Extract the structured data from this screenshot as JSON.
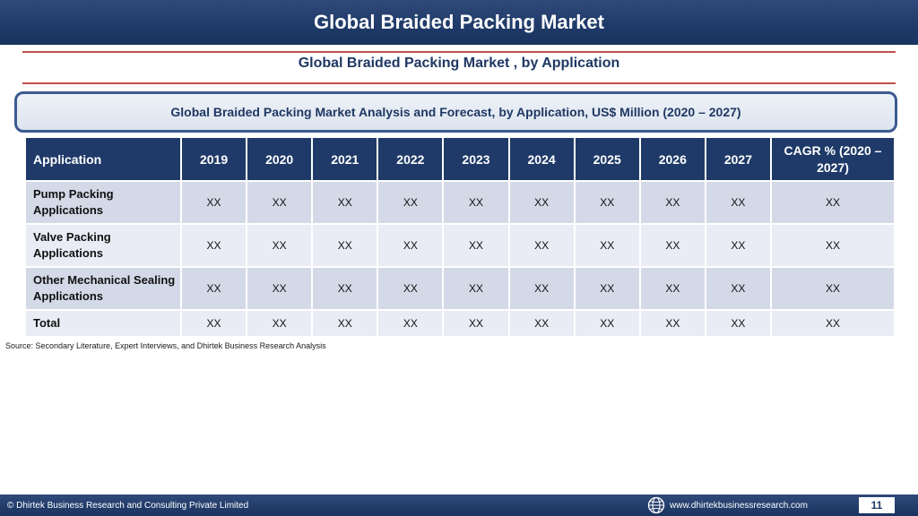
{
  "header": {
    "title": "Global Braided Packing Market"
  },
  "subtitle": "Global Braided Packing Market , by Application",
  "caption": "Global Braided Packing Market  Analysis and Forecast, by Application, US$ Million (2020 – 2027)",
  "table": {
    "columns": [
      "Application",
      "2019",
      "2020",
      "2021",
      "2022",
      "2023",
      "2024",
      "2025",
      "2026",
      "2027",
      "CAGR % (2020 – 2027)"
    ],
    "rows": [
      {
        "label": "Pump Packing Applications",
        "values": [
          "XX",
          "XX",
          "XX",
          "XX",
          "XX",
          "XX",
          "XX",
          "XX",
          "XX",
          "XX"
        ]
      },
      {
        "label": "Valve Packing Applications",
        "values": [
          "XX",
          "XX",
          "XX",
          "XX",
          "XX",
          "XX",
          "XX",
          "XX",
          "XX",
          "XX"
        ]
      },
      {
        "label": "Other Mechanical Sealing Applications",
        "values": [
          "XX",
          "XX",
          "XX",
          "XX",
          "XX",
          "XX",
          "XX",
          "XX",
          "XX",
          "XX"
        ]
      },
      {
        "label": "Total",
        "values": [
          "XX",
          "XX",
          "XX",
          "XX",
          "XX",
          "XX",
          "XX",
          "XX",
          "XX",
          "XX"
        ]
      }
    ]
  },
  "source": "Source: Secondary Literature, Expert Interviews, and Dhirtek Business Research Analysis",
  "footer": {
    "copyright": "© Dhirtek Business Research and Consulting Private Limited",
    "website": "www.dhirtekbusinessresearch.com",
    "page_number": "11",
    "globe_icon": "globe-icon"
  },
  "colors": {
    "header_bg": "#1f3a68",
    "accent_rule": "#c0504d",
    "row_odd": "#d4d9e8",
    "row_even": "#e9ecf4"
  }
}
